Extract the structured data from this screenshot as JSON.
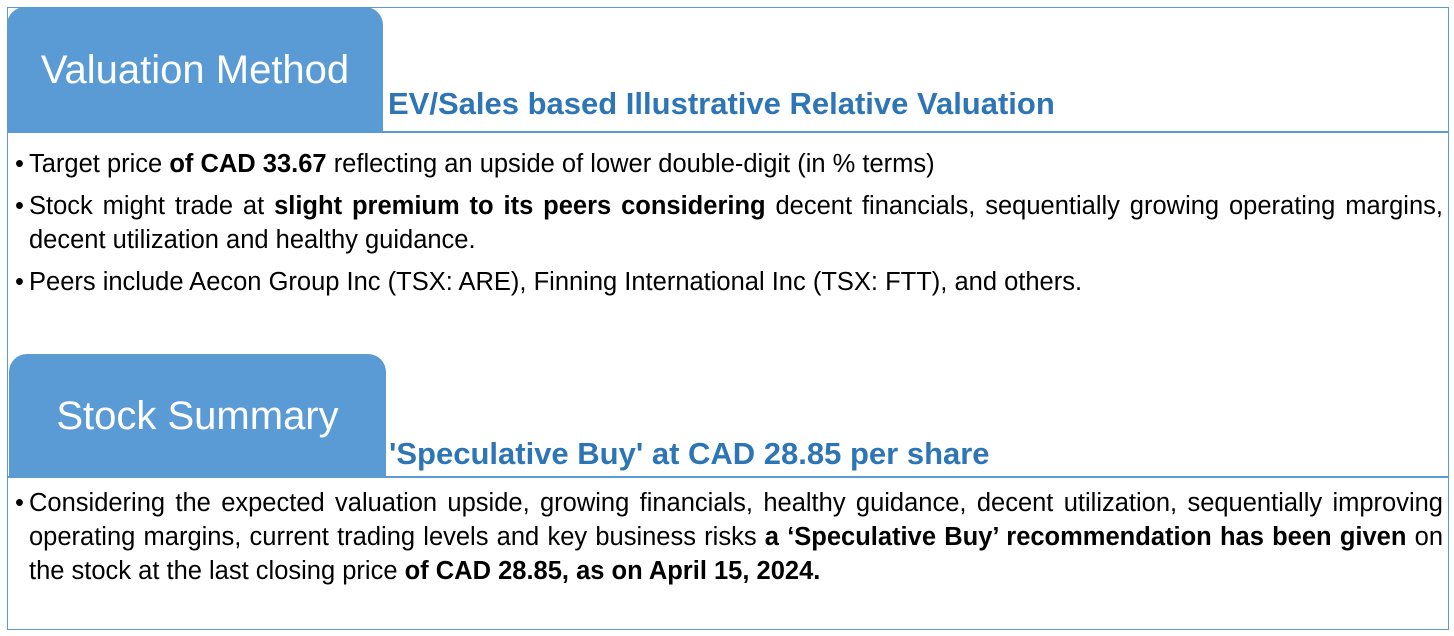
{
  "valuation": {
    "tab_title": "Valuation Method",
    "subtitle": "EV/Sales based Illustrative Relative Valuation",
    "bullet_char": "•",
    "b1": {
      "t1": "Target price ",
      "b1": "of CAD 33.67",
      "t2": " reflecting an upside of lower double-digit (in % terms)"
    },
    "b2": {
      "t1": "Stock might trade at ",
      "b1": "slight premium to its peers considering",
      "t2": " decent financials, sequentially growing operating margins, decent utilization and healthy guidance."
    },
    "b3": {
      "t1": "Peers include Aecon Group Inc (TSX: ARE), Finning International Inc (TSX: FTT), and others."
    }
  },
  "summary": {
    "tab_title": "Stock Summary",
    "subtitle": "'Speculative Buy' at CAD 28.85 per share",
    "bullet_char": "•",
    "b1": {
      "t1": "Considering the expected valuation upside, growing financials, healthy guidance, decent utilization, sequentially improving operating margins, current trading levels and key business risks ",
      "b1": "a ‘Speculative Buy’ recommendation has been given",
      "t2": " on the stock at the last closing price ",
      "b2": "of CAD 28.85, as on April 15, 2024."
    }
  },
  "colors": {
    "accent": "#5b9bd5",
    "subtitle": "#2e75b6"
  }
}
